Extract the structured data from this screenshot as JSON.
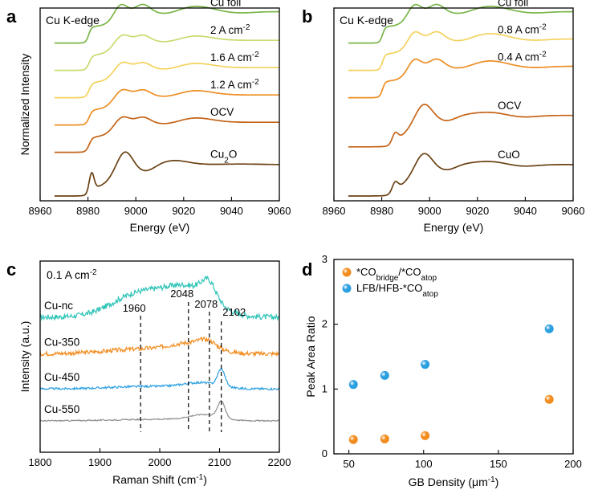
{
  "chart_data": [
    {
      "panel": "a",
      "type": "line",
      "title": "Cu K-edge",
      "xlabel": "Energy (eV)",
      "ylabel": "Normalized Intensity",
      "xlim": [
        8960,
        9060
      ],
      "xticks": [
        "8960",
        "8980",
        "9000",
        "9020",
        "9040",
        "9060"
      ],
      "ylim": [
        0,
        7
      ],
      "series": [
        {
          "name": "Cu foil",
          "label_main": "Cu foil",
          "label_sup": "",
          "label_sub": "",
          "label_tail": "",
          "color": "#7ab648",
          "baseline": 5.6,
          "shape": "cu_foil"
        },
        {
          "name": "2 A cm-2",
          "label_main": "2 A cm",
          "label_sup": "-2",
          "label_sub": "",
          "label_tail": "",
          "color": "#c6dc6e",
          "baseline": 4.6,
          "shape": "mixed"
        },
        {
          "name": "1.6 A cm-2",
          "label_main": "1.6 A cm",
          "label_sup": "-2",
          "label_sub": "",
          "label_tail": "",
          "color": "#f3d25c",
          "baseline": 3.6,
          "shape": "mixed"
        },
        {
          "name": "1.2 A cm-2",
          "label_main": "1.2 A cm",
          "label_sup": "-2",
          "label_sub": "",
          "label_tail": "",
          "color": "#ed8e24",
          "baseline": 2.6,
          "shape": "mixed"
        },
        {
          "name": "OCV",
          "label_main": "OCV",
          "label_sup": "",
          "label_sub": "",
          "label_tail": "",
          "color": "#c56418",
          "baseline": 1.6,
          "shape": "mixed"
        },
        {
          "name": "Cu2O",
          "label_main": "Cu",
          "label_sup": "",
          "label_sub": "2",
          "label_tail": "O",
          "color": "#6b4213",
          "baseline": 0.0,
          "shape": "cu2o"
        }
      ]
    },
    {
      "panel": "b",
      "type": "line",
      "title": "Cu K-edge",
      "xlabel": "Energy (eV)",
      "ylabel": "",
      "xlim": [
        8960,
        9060
      ],
      "xticks": [
        "8960",
        "8980",
        "9000",
        "9020",
        "9040",
        "9060"
      ],
      "ylim": [
        0,
        7
      ],
      "series": [
        {
          "name": "Cu foil",
          "label_main": "Cu foil",
          "label_sup": "",
          "label_sub": "",
          "label_tail": "",
          "color": "#7ab648",
          "baseline": 5.6,
          "shape": "cu_foil"
        },
        {
          "name": "0.8 A cm-2",
          "label_main": "0.8 A cm",
          "label_sup": "-2",
          "label_sub": "",
          "label_tail": "",
          "color": "#f3d25c",
          "baseline": 4.6,
          "shape": "cu_foil"
        },
        {
          "name": "0.4 A cm-2",
          "label_main": "0.4 A cm",
          "label_sup": "-2",
          "label_sub": "",
          "label_tail": "",
          "color": "#ed8e24",
          "baseline": 3.6,
          "shape": "cu_foil"
        },
        {
          "name": "OCV",
          "label_main": "OCV",
          "label_sup": "",
          "label_sub": "",
          "label_tail": "",
          "color": "#c56418",
          "baseline": 1.8,
          "shape": "cuo"
        },
        {
          "name": "CuO",
          "label_main": "CuO",
          "label_sup": "",
          "label_sub": "",
          "label_tail": "",
          "color": "#6b4213",
          "baseline": 0.0,
          "shape": "cuo"
        }
      ]
    },
    {
      "panel": "c",
      "type": "line",
      "title": "0.1 A cm",
      "title_sup": "-2",
      "xlabel": "Raman Shift (cm",
      "xlabel_sup": "-1",
      "xlabel_tail": ")",
      "ylabel": "Intensity (a.u.)",
      "xlim": [
        1800,
        2200
      ],
      "xticks": [
        "1800",
        "1900",
        "2000",
        "2100",
        "2200"
      ],
      "peaks": [
        {
          "label": "1960",
          "x": 1968
        },
        {
          "label": "2048",
          "x": 2048
        },
        {
          "label": "2078",
          "x": 2083
        },
        {
          "label": "2102",
          "x": 2103
        }
      ],
      "series": [
        {
          "name": "Cu-nc",
          "color": "#2fc4b8",
          "baseline": 3.9
        },
        {
          "name": "Cu-350",
          "color": "#f28c1e",
          "baseline": 2.7
        },
        {
          "name": "Cu-450",
          "color": "#2b9fe0",
          "baseline": 1.55
        },
        {
          "name": "Cu-550",
          "color": "#8f8f8f",
          "baseline": 0.5
        }
      ]
    },
    {
      "panel": "d",
      "type": "scatter",
      "xlabel": "GB Density (μm",
      "xlabel_sup": "-1",
      "xlabel_tail": ")",
      "ylabel": "Peak Area Ratio",
      "xlim": [
        40,
        200
      ],
      "ylim": [
        0,
        3
      ],
      "xticks": [
        "50",
        "100",
        "150",
        "200"
      ],
      "yticks": [
        "0",
        "1",
        "2",
        "3"
      ],
      "series": [
        {
          "name": "*CObridge/*COatop",
          "color": "#f28c1e",
          "legend": {
            "a": "*CO",
            "a_sub": "bridge",
            "b": "/*CO",
            "b_sub": "atop"
          },
          "x": [
            53,
            74,
            101,
            184
          ],
          "y": [
            0.22,
            0.23,
            0.28,
            0.84
          ]
        },
        {
          "name": "LFB/HFB-*COatop",
          "color": "#2b9fe0",
          "legend": {
            "a": "LFB/HFB-*CO",
            "a_sub": "atop",
            "b": "",
            "b_sub": ""
          },
          "x": [
            53,
            74,
            101,
            184
          ],
          "y": [
            1.07,
            1.21,
            1.38,
            1.93
          ]
        }
      ]
    }
  ]
}
